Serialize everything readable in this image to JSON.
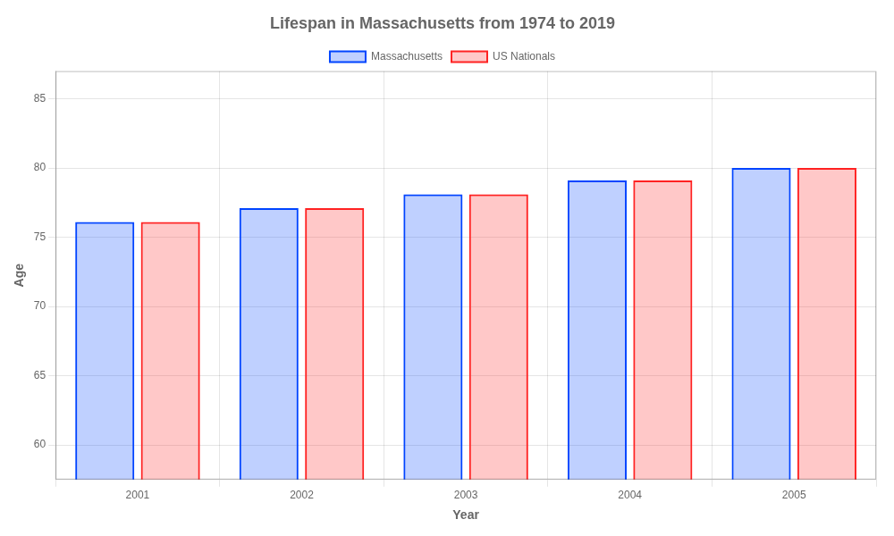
{
  "chart_data": {
    "type": "bar",
    "title": "Lifespan in Massachusetts from 1974 to 2019",
    "x_label": "Year",
    "y_label": "Age",
    "categories": [
      "2001",
      "2002",
      "2003",
      "2004",
      "2005"
    ],
    "series": [
      {
        "name": "Massachusetts",
        "color": "#0044ff",
        "values": [
          76.1,
          77.1,
          78.1,
          79.1,
          80.0
        ]
      },
      {
        "name": "US Nationals",
        "color": "#ff2222",
        "values": [
          76.1,
          77.1,
          78.1,
          79.1,
          80.0
        ]
      }
    ],
    "ylim": [
      57.5,
      87
    ],
    "yticks": [
      60,
      65,
      70,
      75,
      80,
      85
    ],
    "grid": true,
    "legend": "top"
  }
}
